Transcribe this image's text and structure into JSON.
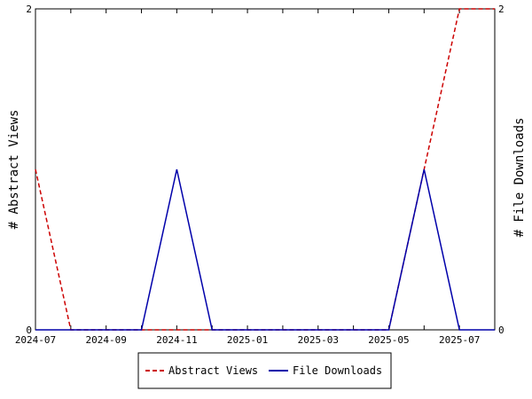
{
  "chart_data": {
    "type": "line",
    "ylabel_left": "# Abstract Views",
    "ylabel_right": "# File Downloads",
    "x_ticks": [
      "2024-07",
      "2024-09",
      "2024-11",
      "2025-01",
      "2025-03",
      "2025-05",
      "2025-07"
    ],
    "x": [
      "2024-07",
      "2024-08",
      "2024-09",
      "2024-10",
      "2024-11",
      "2024-12",
      "2025-01",
      "2025-02",
      "2025-03",
      "2025-04",
      "2025-05",
      "2025-06",
      "2025-07",
      "2025-08"
    ],
    "xlim": [
      "2024-07",
      "2025-08"
    ],
    "ylim_left": [
      0,
      2
    ],
    "ylim_right": [
      0,
      2
    ],
    "y_ticks_left": [
      "0",
      "2"
    ],
    "y_ticks_right": [
      "0",
      "2"
    ],
    "series": [
      {
        "name": "Abstract Views",
        "axis": "left",
        "color": "#cc0000",
        "style": "dashed",
        "values": [
          1,
          0,
          0,
          0,
          0,
          0,
          0,
          0,
          0,
          0,
          0,
          1,
          2,
          2
        ]
      },
      {
        "name": "File Downloads",
        "axis": "right",
        "color": "#0000aa",
        "style": "solid",
        "values": [
          0,
          0,
          0,
          0,
          1,
          0,
          0,
          0,
          0,
          0,
          0,
          1,
          0,
          0
        ]
      }
    ],
    "legend_position": "bottom-center",
    "grid": false
  }
}
